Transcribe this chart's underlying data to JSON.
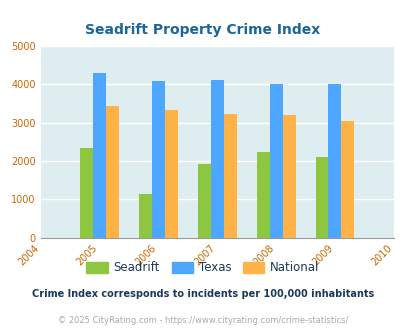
{
  "title": "Seadrift Property Crime Index",
  "all_years": [
    2004,
    2005,
    2006,
    2007,
    2008,
    2009,
    2010
  ],
  "data_years": [
    2005,
    2006,
    2007,
    2008,
    2009
  ],
  "seadrift": [
    2350,
    1150,
    1920,
    2230,
    2110
  ],
  "texas": [
    4310,
    4080,
    4110,
    4000,
    4020
  ],
  "national": [
    3440,
    3340,
    3230,
    3210,
    3040
  ],
  "seadrift_color": "#8dc63f",
  "texas_color": "#4da6ff",
  "national_color": "#ffb347",
  "bg_color": "#deedf0",
  "ylim": [
    0,
    5000
  ],
  "yticks": [
    0,
    1000,
    2000,
    3000,
    4000,
    5000
  ],
  "bar_width": 0.22,
  "legend_labels": [
    "Seadrift",
    "Texas",
    "National"
  ],
  "footnote1": "Crime Index corresponds to incidents per 100,000 inhabitants",
  "footnote2": "© 2025 CityRating.com - https://www.cityrating.com/crime-statistics/",
  "title_color": "#1a6699",
  "axis_label_color": "#cc6600",
  "footnote1_color": "#1a3a5c",
  "footnote2_color": "#aaaaaa",
  "legend_label_color": "#1a3a5c",
  "grid_color": "#c8dde0",
  "axis_line_color": "#999999"
}
